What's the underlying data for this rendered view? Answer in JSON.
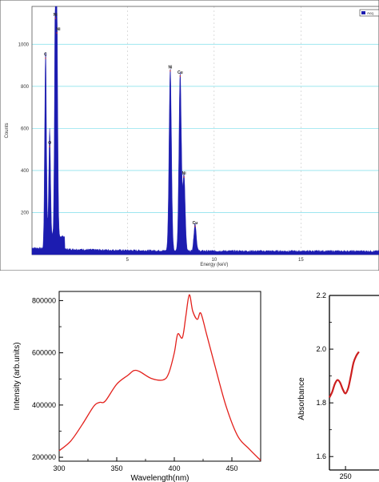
{
  "colors": {
    "eds_fill": "#1c1cb0",
    "eds_grid": "#8fe3ee",
    "eds_border": "#555555",
    "eds_peak_label": "#cc2222",
    "pl_line": "#e3201b",
    "abs_line": "#cc1e1e",
    "axis": "#000000"
  },
  "chart_data": [
    {
      "type": "area",
      "title": "",
      "xlabel": "Energy (keV)",
      "ylabel": "Counts",
      "legend": {
        "position": "top-right",
        "label": "Acq"
      },
      "xlim": [
        -0.5,
        19.5
      ],
      "ylim": [
        0,
        1180
      ],
      "x_ticks": [
        "5",
        "10",
        "15"
      ],
      "y_ticks": [
        "200",
        "400",
        "600",
        "800",
        "1000"
      ],
      "grid": true,
      "peaks": [
        {
          "label": "C",
          "x": 0.28,
          "y": 930
        },
        {
          "label": "O",
          "x": 0.52,
          "y": 510
        },
        {
          "label": "Ni",
          "x": 0.85,
          "y": 1120
        },
        {
          "label": "Ni",
          "x": 0.93,
          "y": 1050
        },
        {
          "label": "Ni",
          "x": 7.47,
          "y": 870
        },
        {
          "label": "Cu",
          "x": 8.04,
          "y": 845
        },
        {
          "label": "Ni",
          "x": 8.26,
          "y": 365
        },
        {
          "label": "Cu",
          "x": 8.9,
          "y": 130
        }
      ]
    },
    {
      "type": "line",
      "title": "",
      "xlabel": "Wavelength(nm)",
      "ylabel": "Intensity (arb.units)",
      "xlim": [
        300,
        475
      ],
      "ylim": [
        185000,
        835000
      ],
      "x_ticks": [
        "300",
        "350",
        "400",
        "450"
      ],
      "y_ticks": [
        "200000",
        "400000",
        "600000",
        "800000"
      ],
      "series": [
        {
          "x": [
            300,
            310,
            320,
            330,
            335,
            340,
            350,
            360,
            365,
            370,
            380,
            390,
            395,
            400,
            403,
            407,
            410,
            413,
            416,
            420,
            423,
            428,
            435,
            445,
            455,
            465,
            475
          ],
          "values": [
            225000,
            262000,
            325000,
            395000,
            410000,
            415000,
            480000,
            515000,
            532000,
            528000,
            502000,
            496000,
            520000,
            600000,
            672000,
            658000,
            740000,
            822000,
            760000,
            728000,
            752000,
            672000,
            555000,
            395000,
            282000,
            232000,
            188000
          ]
        }
      ]
    },
    {
      "type": "line",
      "title": "",
      "xlabel": "",
      "ylabel": "Absorbance",
      "xlim": [
        238,
        275
      ],
      "ylim": [
        1.55,
        2.2
      ],
      "x_ticks": [
        "250"
      ],
      "y_ticks": [
        "1.6",
        "1.8",
        "2.0",
        "2.2"
      ],
      "series": [
        {
          "x": [
            238,
            240,
            242,
            244,
            246,
            248,
            250,
            252,
            254,
            256,
            258,
            260
          ],
          "values": [
            1.82,
            1.84,
            1.87,
            1.885,
            1.875,
            1.85,
            1.835,
            1.855,
            1.9,
            1.95,
            1.975,
            1.99
          ]
        }
      ]
    }
  ]
}
